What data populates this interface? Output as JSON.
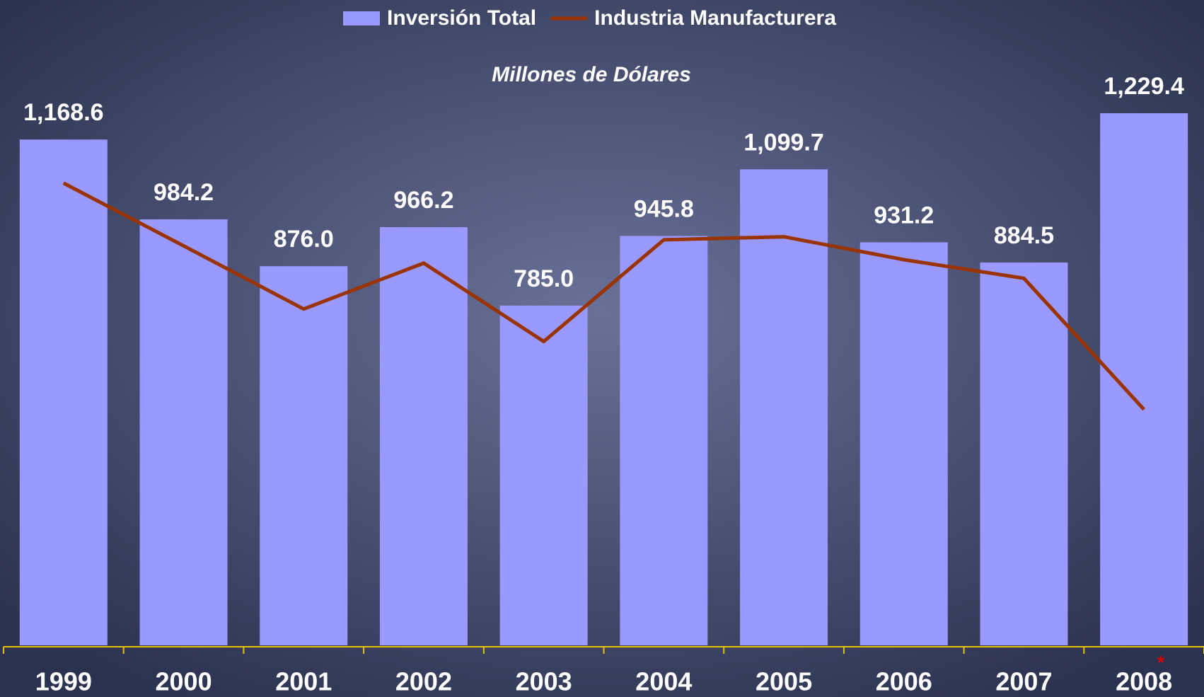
{
  "chart_data": {
    "type": "bar_line",
    "subtitle": "Millones de Dólares",
    "categories": [
      "1999",
      "2000",
      "2001",
      "2002",
      "2003",
      "2004",
      "2005",
      "2006",
      "2007",
      "2008"
    ],
    "series": [
      {
        "name": "Inversión Total",
        "type": "bar",
        "color": "#9999ff",
        "values": [
          1168.6,
          984.2,
          876.0,
          966.2,
          785.0,
          945.8,
          1099.7,
          931.2,
          884.5,
          1229.4
        ],
        "value_labels": [
          "1,168.6",
          "984.2",
          "876.0",
          "966.2",
          "785.0",
          "945.8",
          "1,099.7",
          "931.2",
          "884.5",
          "1,229.4"
        ]
      },
      {
        "name": "Industria Manufacturera",
        "type": "line",
        "color": "#993300",
        "values": [
          1068,
          923,
          777,
          883,
          702,
          937,
          944,
          891,
          848,
          545
        ]
      }
    ],
    "note_marker": "*",
    "note_category": 9
  }
}
